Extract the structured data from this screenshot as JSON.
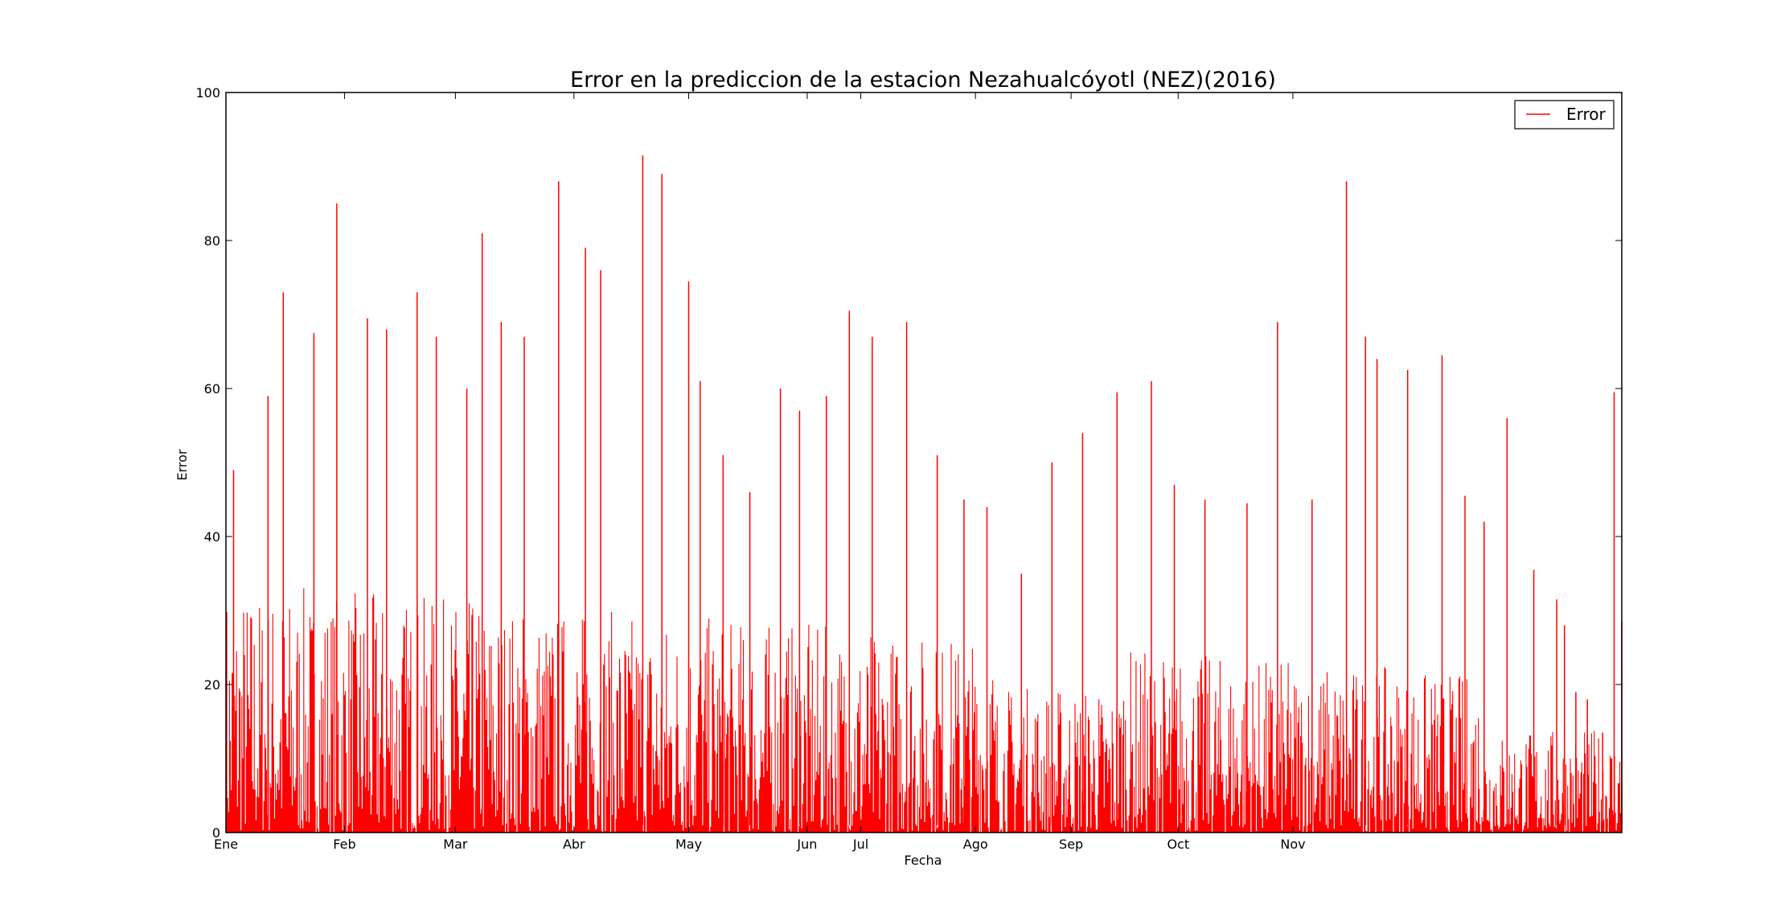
{
  "chart_data": {
    "type": "line",
    "title": "Error en la prediccion de la estacion Nezahualcóyotl (NEZ)(2016)",
    "xlabel": "Fecha",
    "ylabel": "Error",
    "ylim": [
      0,
      100
    ],
    "yticks": [
      0,
      20,
      40,
      60,
      80,
      100
    ],
    "xlim": [
      "2016-01-01",
      "2016-12-31"
    ],
    "xticks": [
      {
        "date": "2016-01-01",
        "label": "Ene"
      },
      {
        "date": "2016-02-01",
        "label": "Feb"
      },
      {
        "date": "2016-03-01",
        "label": "Mar"
      },
      {
        "date": "2016-04-01",
        "label": "Abr"
      },
      {
        "date": "2016-05-01",
        "label": "May"
      },
      {
        "date": "2016-06-01",
        "label": "Jun"
      },
      {
        "date": "2016-06-15",
        "label": "Jul"
      },
      {
        "date": "2016-07-15",
        "label": "Ago"
      },
      {
        "date": "2016-08-09",
        "label": "Sep"
      },
      {
        "date": "2016-09-06",
        "label": "Oct"
      },
      {
        "date": "2016-10-06",
        "label": "Nov"
      }
    ],
    "grid": false,
    "legend_position": "top-right",
    "series": [
      {
        "name": "Error",
        "color": "#ff0000",
        "x": [
          "2016-01-03",
          "2016-01-12",
          "2016-01-16",
          "2016-01-24",
          "2016-01-30",
          "2016-02-07",
          "2016-02-12",
          "2016-02-20",
          "2016-02-25",
          "2016-03-04",
          "2016-03-08",
          "2016-03-13",
          "2016-03-19",
          "2016-03-28",
          "2016-04-04",
          "2016-04-08",
          "2016-04-19",
          "2016-04-24",
          "2016-05-01",
          "2016-05-04",
          "2016-05-10",
          "2016-05-17",
          "2016-05-25",
          "2016-05-30",
          "2016-06-06",
          "2016-06-12",
          "2016-06-18",
          "2016-06-27",
          "2016-07-05",
          "2016-07-12",
          "2016-07-18",
          "2016-07-27",
          "2016-08-04",
          "2016-08-12",
          "2016-08-21",
          "2016-08-30",
          "2016-09-05",
          "2016-09-13",
          "2016-09-24",
          "2016-10-02",
          "2016-10-11",
          "2016-10-20",
          "2016-10-25",
          "2016-10-28",
          "2016-11-05",
          "2016-11-14",
          "2016-11-20",
          "2016-11-25",
          "2016-12-01",
          "2016-12-08",
          "2016-12-14",
          "2016-12-16",
          "2016-12-19",
          "2016-12-22",
          "2016-12-26",
          "2016-12-29",
          "2016-12-31"
        ],
        "values": [
          49,
          59,
          73,
          67.5,
          85,
          69.5,
          68,
          73,
          67,
          60,
          81,
          69,
          67,
          88,
          79,
          76,
          91.5,
          89,
          74.5,
          61,
          51,
          46,
          60,
          57,
          59,
          70.5,
          67,
          69,
          51,
          45,
          44,
          35,
          50,
          54,
          59.5,
          61,
          47,
          45,
          44.5,
          69,
          45,
          88,
          67,
          64,
          62.5,
          64.5,
          45.5,
          42,
          56,
          35.5,
          31.5,
          28,
          19,
          18,
          13.5,
          59.5,
          28.5
        ]
      }
    ]
  }
}
